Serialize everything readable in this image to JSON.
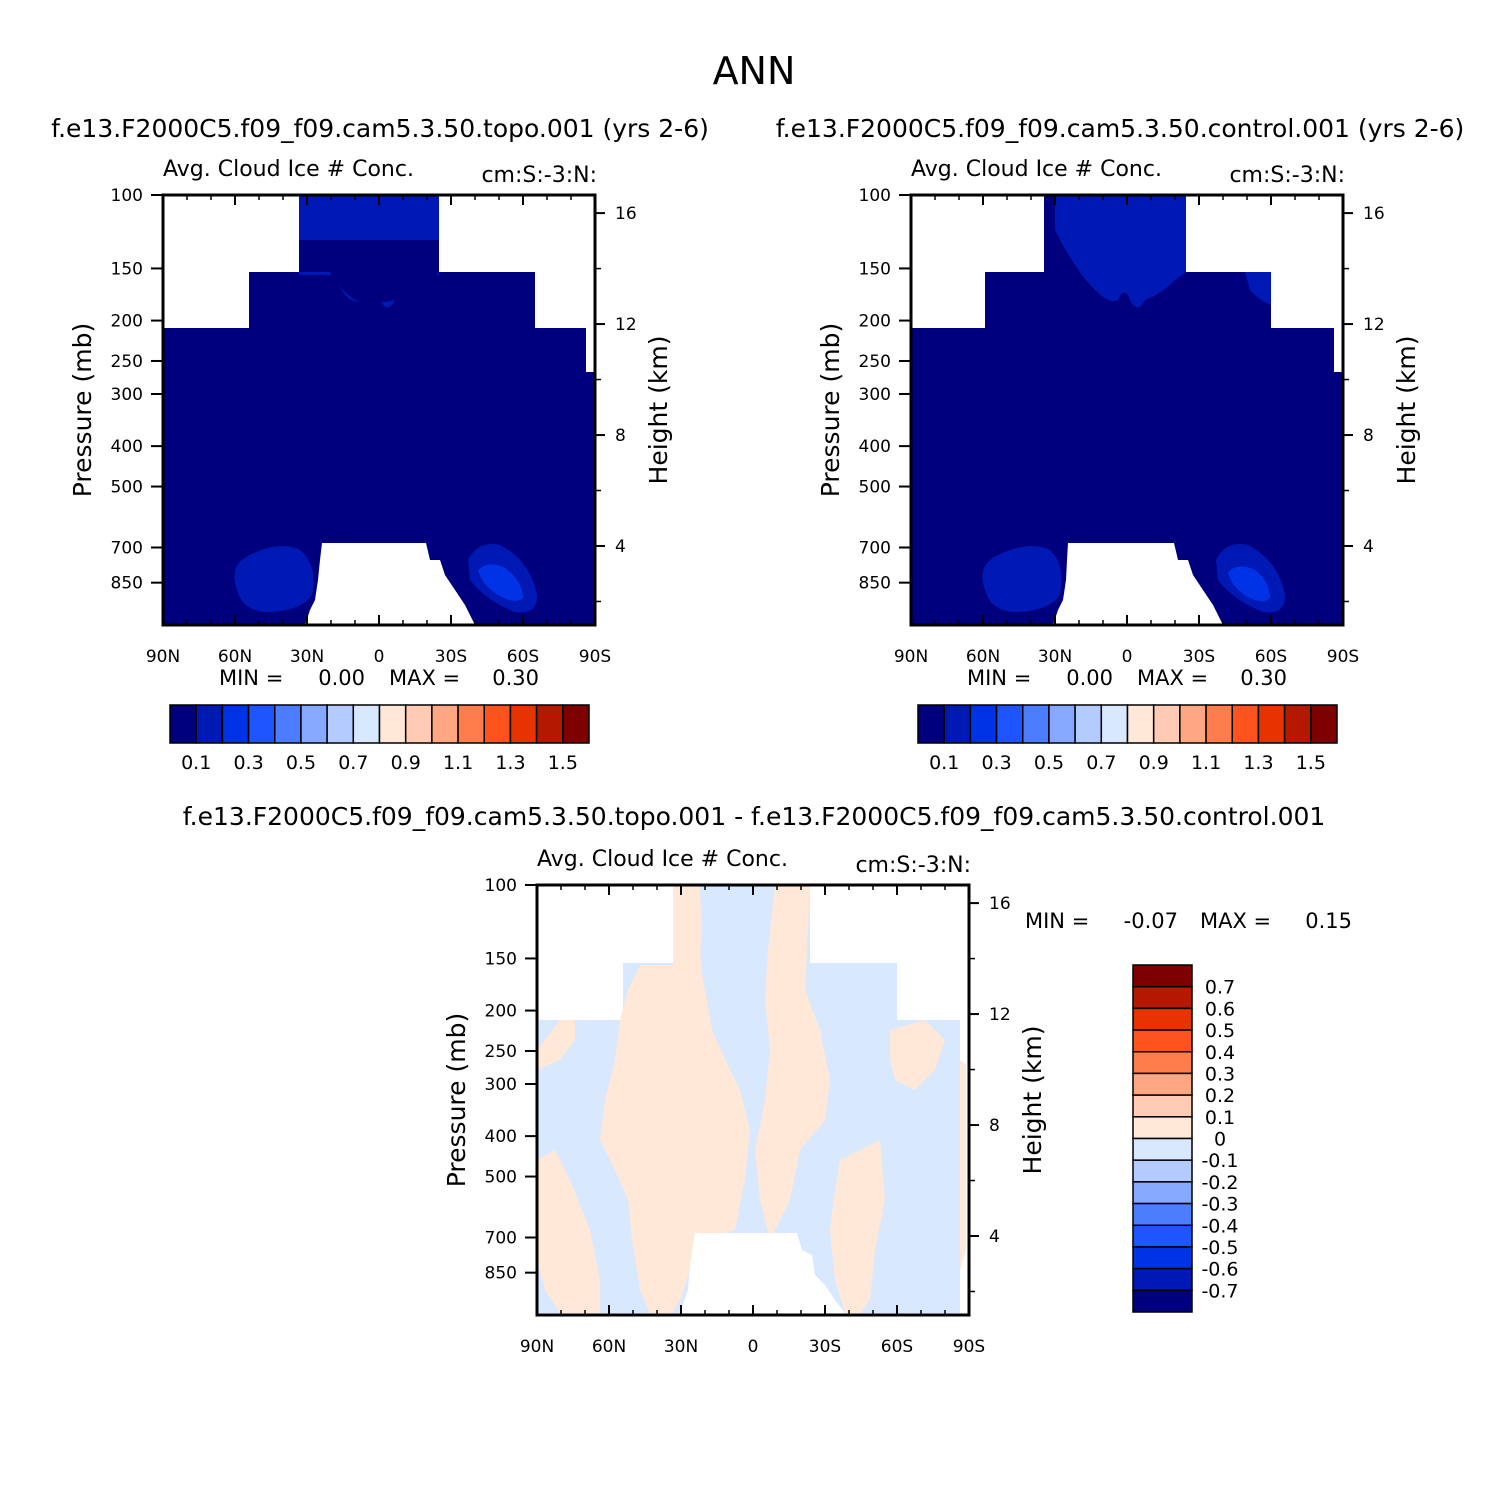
{
  "page_title": "ANN",
  "colors": {
    "fill_scale": [
      "#00007e",
      "#0019b4",
      "#0033e6",
      "#1e55ff",
      "#4c7cff",
      "#87a8ff",
      "#b4cbff",
      "#d7e8ff",
      "#ffe8d8",
      "#ffcbb4",
      "#ffa782",
      "#ff7c4c",
      "#ff531f",
      "#e63300",
      "#b41900",
      "#7e0000"
    ],
    "frame": "#000000"
  },
  "chart_data": [
    {
      "type": "heatmap",
      "title": "f.e13.F2000C5.f09_f09.cam5.3.50.topo.001 (yrs 2-6)",
      "subtitle": "Avg. Cloud Ice # Conc.",
      "units": "cm:S:-3:N:",
      "xlabel": "",
      "ylabel": "Pressure (mb)",
      "ylabel_right": "Height (km)",
      "x_ticks": [
        "90N",
        "60N",
        "30N",
        "0",
        "30S",
        "60S",
        "90S"
      ],
      "y_ticks": [
        "100",
        "150",
        "200",
        "250",
        "300",
        "400",
        "500",
        "700",
        "850"
      ],
      "y_ticks_right": [
        "16",
        "12",
        "8",
        "4"
      ],
      "stats": {
        "min_label": "MIN =",
        "min": "0.00",
        "max_label": "MAX =",
        "max": "0.30"
      },
      "colorbar_labels": [
        "0.1",
        "0.3",
        "0.5",
        "0.7",
        "0.9",
        "1.1",
        "1.3",
        "1.5"
      ],
      "colorbar_orientation": "horizontal"
    },
    {
      "type": "heatmap",
      "title": "f.e13.F2000C5.f09_f09.cam5.3.50.control.001 (yrs 2-6)",
      "subtitle": "Avg. Cloud Ice # Conc.",
      "units": "cm:S:-3:N:",
      "xlabel": "",
      "ylabel": "Pressure (mb)",
      "ylabel_right": "Height (km)",
      "x_ticks": [
        "90N",
        "60N",
        "30N",
        "0",
        "30S",
        "60S",
        "90S"
      ],
      "y_ticks": [
        "100",
        "150",
        "200",
        "250",
        "300",
        "400",
        "500",
        "700",
        "850"
      ],
      "y_ticks_right": [
        "16",
        "12",
        "8",
        "4"
      ],
      "stats": {
        "min_label": "MIN =",
        "min": "0.00",
        "max_label": "MAX =",
        "max": "0.30"
      },
      "colorbar_labels": [
        "0.1",
        "0.3",
        "0.5",
        "0.7",
        "0.9",
        "1.1",
        "1.3",
        "1.5"
      ],
      "colorbar_orientation": "horizontal"
    },
    {
      "type": "heatmap",
      "title": "f.e13.F2000C5.f09_f09.cam5.3.50.topo.001 - f.e13.F2000C5.f09_f09.cam5.3.50.control.001",
      "subtitle": "Avg. Cloud Ice # Conc.",
      "units": "cm:S:-3:N:",
      "xlabel": "",
      "ylabel": "Pressure (mb)",
      "ylabel_right": "Height (km)",
      "x_ticks": [
        "90N",
        "60N",
        "30N",
        "0",
        "30S",
        "60S",
        "90S"
      ],
      "y_ticks": [
        "100",
        "150",
        "200",
        "250",
        "300",
        "400",
        "500",
        "700",
        "850"
      ],
      "y_ticks_right": [
        "16",
        "12",
        "8",
        "4"
      ],
      "stats": {
        "min_label": "MIN =",
        "min": "-0.07",
        "max_label": "MAX =",
        "max": "0.15"
      },
      "colorbar_labels": [
        "0.7",
        "0.6",
        "0.5",
        "0.4",
        "0.3",
        "0.2",
        "0.1",
        "0",
        "-0.1",
        "-0.2",
        "-0.3",
        "-0.4",
        "-0.5",
        "-0.6",
        "-0.7"
      ],
      "colorbar_orientation": "vertical"
    }
  ]
}
